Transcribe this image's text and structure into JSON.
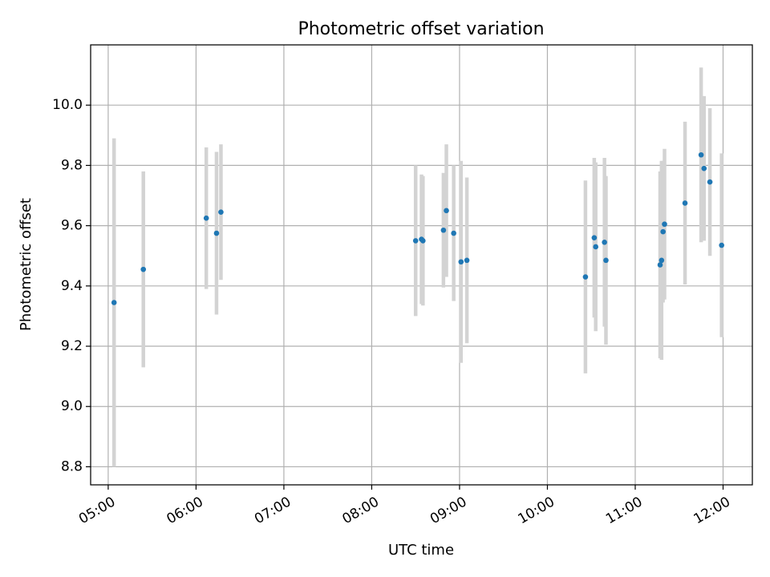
{
  "chart_data": {
    "type": "scatter",
    "title": "Photometric offset variation",
    "xlabel": "UTC time",
    "ylabel": "Photometric offset",
    "x_axis": "time",
    "xlim": [
      "04:48",
      "12:20"
    ],
    "ylim": [
      8.74,
      10.2
    ],
    "x_ticks": [
      "05:00",
      "06:00",
      "07:00",
      "08:00",
      "09:00",
      "10:00",
      "11:00",
      "12:00"
    ],
    "y_ticks": [
      "8.8",
      "9.0",
      "9.2",
      "9.4",
      "9.6",
      "9.8",
      "10.0"
    ],
    "grid": true,
    "colors": {
      "points": "#1f77b4",
      "error_bars": "#d3d3d3",
      "grid": "#b0b0b0"
    },
    "series": [
      {
        "points": [
          {
            "t": "05:04",
            "y": 9.345,
            "yerr": 0.545
          },
          {
            "t": "05:24",
            "y": 9.455,
            "yerr": 0.325
          },
          {
            "t": "06:07",
            "y": 9.625,
            "yerr": 0.235
          },
          {
            "t": "06:14",
            "y": 9.575,
            "yerr": 0.27
          },
          {
            "t": "06:17",
            "y": 9.645,
            "yerr": 0.225
          },
          {
            "t": "08:30",
            "y": 9.55,
            "yerr": 0.25
          },
          {
            "t": "08:34",
            "y": 9.555,
            "yerr": 0.215
          },
          {
            "t": "08:35",
            "y": 9.55,
            "yerr": 0.215
          },
          {
            "t": "08:49",
            "y": 9.585,
            "yerr": 0.19
          },
          {
            "t": "08:51",
            "y": 9.65,
            "yerr": 0.22
          },
          {
            "t": "08:56",
            "y": 9.575,
            "yerr": 0.225
          },
          {
            "t": "09:01",
            "y": 9.48,
            "yerr": 0.335
          },
          {
            "t": "09:05",
            "y": 9.485,
            "yerr": 0.275
          },
          {
            "t": "10:26",
            "y": 9.43,
            "yerr": 0.32
          },
          {
            "t": "10:32",
            "y": 9.56,
            "yerr": 0.265
          },
          {
            "t": "10:33",
            "y": 9.53,
            "yerr": 0.28
          },
          {
            "t": "10:39",
            "y": 9.545,
            "yerr": 0.28
          },
          {
            "t": "10:40",
            "y": 9.485,
            "yerr": 0.28
          },
          {
            "t": "11:17",
            "y": 9.47,
            "yerr": 0.31
          },
          {
            "t": "11:18",
            "y": 9.485,
            "yerr": 0.33
          },
          {
            "t": "11:19",
            "y": 9.58,
            "yerr": 0.235
          },
          {
            "t": "11:20",
            "y": 9.605,
            "yerr": 0.25
          },
          {
            "t": "11:34",
            "y": 9.675,
            "yerr": 0.27
          },
          {
            "t": "11:45",
            "y": 9.835,
            "yerr": 0.29
          },
          {
            "t": "11:47",
            "y": 9.79,
            "yerr": 0.24
          },
          {
            "t": "11:51",
            "y": 9.745,
            "yerr": 0.245
          },
          {
            "t": "11:59",
            "y": 9.535,
            "yerr": 0.305
          }
        ]
      }
    ]
  }
}
